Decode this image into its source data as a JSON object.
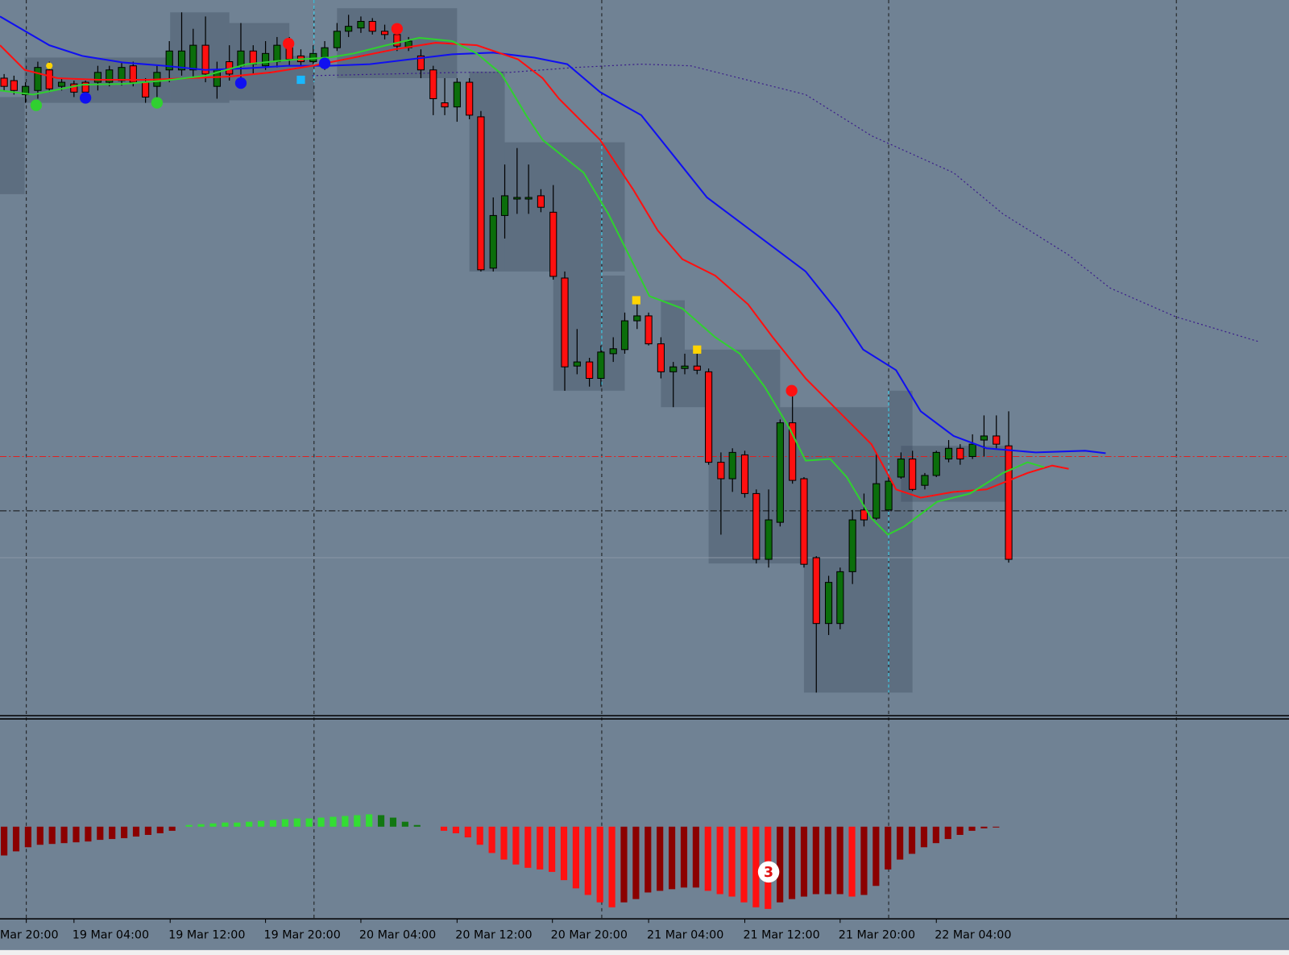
{
  "x_axis": {
    "labels": [
      "Mar 20:00",
      "19 Mar 04:00",
      "19 Mar 12:00",
      "19 Mar 20:00",
      "20 Mar 04:00",
      "20 Mar 12:00",
      "20 Mar 20:00",
      "21 Mar 04:00",
      "21 Mar 12:00",
      "21 Mar 20:00",
      "22 Mar 04:00"
    ]
  },
  "badge": "3"
}
